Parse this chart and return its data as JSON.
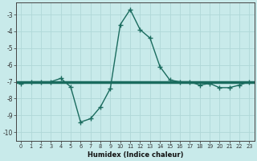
{
  "x": [
    0,
    1,
    2,
    3,
    4,
    5,
    6,
    7,
    8,
    9,
    10,
    11,
    12,
    13,
    14,
    15,
    16,
    17,
    18,
    19,
    20,
    21,
    22,
    23
  ],
  "y": [
    -7.1,
    -7.0,
    -7.0,
    -7.0,
    -6.8,
    -7.3,
    -9.4,
    -9.2,
    -8.5,
    -7.4,
    -3.6,
    -2.7,
    -3.9,
    -4.4,
    -6.1,
    -6.9,
    -7.0,
    -7.0,
    -7.2,
    -7.1,
    -7.35,
    -7.35,
    -7.2,
    -7.0
  ],
  "y2_flat": -7.0,
  "line_color": "#1a6b5e",
  "bg_color": "#c8eaea",
  "grid_color_major": "#b0d8d8",
  "grid_color_minor": "#c0e0e0",
  "xlabel": "Humidex (Indice chaleur)",
  "xlim": [
    -0.5,
    23.5
  ],
  "ylim": [
    -10.5,
    -2.3
  ],
  "yticks": [
    -10,
    -9,
    -8,
    -7,
    -6,
    -5,
    -4,
    -3
  ],
  "xticks": [
    0,
    1,
    2,
    3,
    4,
    5,
    6,
    7,
    8,
    9,
    10,
    11,
    12,
    13,
    14,
    15,
    16,
    17,
    18,
    19,
    20,
    21,
    22,
    23
  ],
  "xtick_labels": [
    "0",
    "1",
    "2",
    "3",
    "4",
    "5",
    "6",
    "7",
    "8",
    "9",
    "10",
    "11",
    "12",
    "13",
    "14",
    "15",
    "16",
    "17",
    "18",
    "19",
    "20",
    "21",
    "22",
    "23"
  ],
  "marker": "+",
  "marker_size": 4,
  "linewidth": 1.0,
  "flat_linewidth": 2.5
}
